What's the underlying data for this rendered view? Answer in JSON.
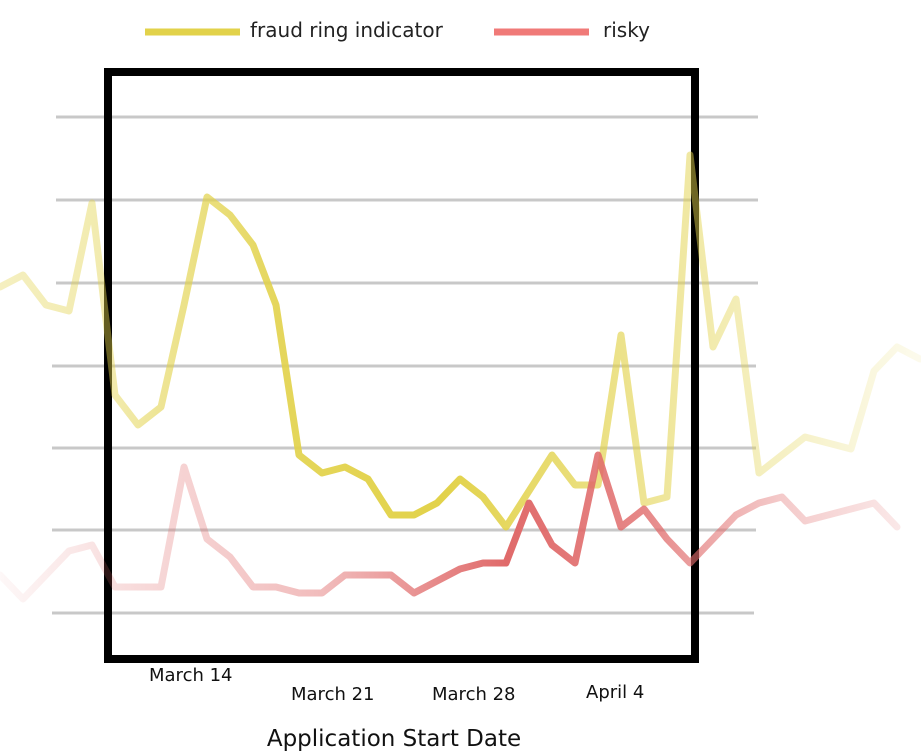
{
  "chart_data": {
    "type": "line",
    "title": "",
    "xlabel": "Application Start Date",
    "ylabel": "",
    "x_ticks": [
      "March 14",
      "March 21",
      "March 28",
      "April 4"
    ],
    "grid": true,
    "legend_position": "top",
    "series": [
      {
        "name": "fraud ring indicator",
        "color": "#e2d24a",
        "points": [
          [
            0,
            68
          ],
          [
            1,
            70
          ],
          [
            2,
            65
          ],
          [
            3,
            64
          ],
          [
            4,
            82
          ],
          [
            5,
            50
          ],
          [
            6,
            45
          ],
          [
            7,
            48
          ],
          [
            8,
            65
          ],
          [
            9,
            83
          ],
          [
            10,
            80
          ],
          [
            11,
            75
          ],
          [
            12,
            65
          ],
          [
            13,
            40
          ],
          [
            14,
            37
          ],
          [
            15,
            38
          ],
          [
            16,
            36
          ],
          [
            17,
            30
          ],
          [
            18,
            30
          ],
          [
            19,
            32
          ],
          [
            20,
            36
          ],
          [
            21,
            33
          ],
          [
            22,
            28
          ],
          [
            23,
            34
          ],
          [
            24,
            40
          ],
          [
            25,
            35
          ],
          [
            26,
            35
          ],
          [
            27,
            60
          ],
          [
            28,
            32
          ],
          [
            29,
            33
          ],
          [
            30,
            90
          ],
          [
            31,
            58
          ],
          [
            32,
            66
          ],
          [
            33,
            37
          ],
          [
            34,
            40
          ],
          [
            35,
            43
          ],
          [
            36,
            42
          ],
          [
            37,
            41
          ],
          [
            38,
            54
          ],
          [
            39,
            58
          ],
          [
            40,
            56
          ]
        ]
      },
      {
        "name": "risky",
        "color": "#f07a78",
        "points": [
          [
            0,
            20
          ],
          [
            1,
            16
          ],
          [
            2,
            20
          ],
          [
            3,
            24
          ],
          [
            4,
            25
          ],
          [
            5,
            18
          ],
          [
            6,
            18
          ],
          [
            7,
            18
          ],
          [
            8,
            38
          ],
          [
            9,
            26
          ],
          [
            10,
            23
          ],
          [
            11,
            18
          ],
          [
            12,
            18
          ],
          [
            13,
            17
          ],
          [
            14,
            17
          ],
          [
            15,
            20
          ],
          [
            16,
            20
          ],
          [
            17,
            20
          ],
          [
            18,
            17
          ],
          [
            19,
            19
          ],
          [
            20,
            21
          ],
          [
            21,
            22
          ],
          [
            22,
            22
          ],
          [
            23,
            32
          ],
          [
            24,
            25
          ],
          [
            25,
            22
          ],
          [
            26,
            40
          ],
          [
            27,
            28
          ],
          [
            28,
            31
          ],
          [
            29,
            26
          ],
          [
            30,
            22
          ],
          [
            31,
            26
          ],
          [
            32,
            30
          ],
          [
            33,
            32
          ],
          [
            34,
            33
          ],
          [
            35,
            29
          ],
          [
            36,
            30
          ],
          [
            37,
            31
          ],
          [
            38,
            32
          ],
          [
            39,
            28
          ]
        ]
      }
    ]
  }
}
